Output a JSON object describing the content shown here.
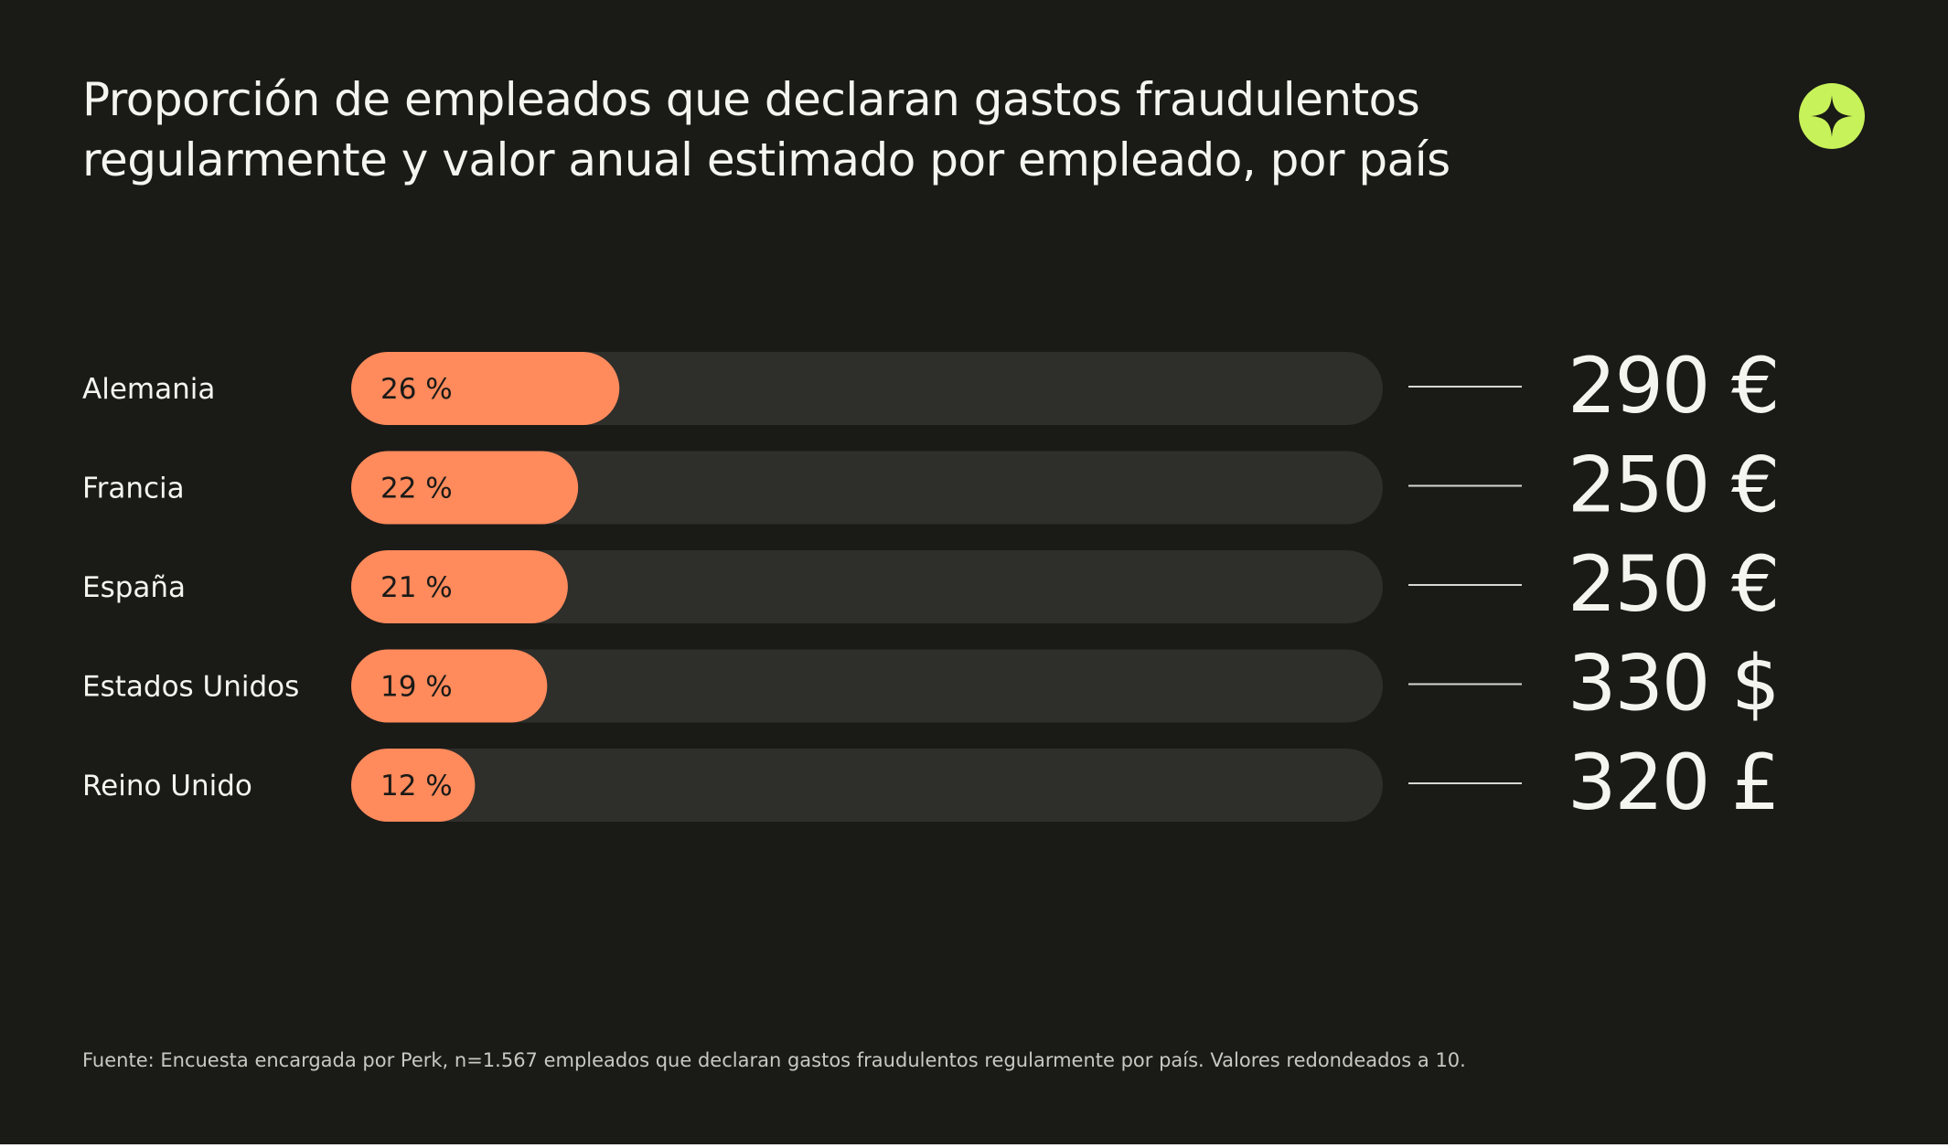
{
  "chart_data": {
    "type": "bar",
    "title": "Proporción de empleados que declaran gastos fraudulentos regularmente y valor anual estimado por empleado, por país",
    "title_lines": [
      "Proporción de empleados que declaran gastos fraudulentos",
      "regularmente y valor anual estimado por empleado, por país"
    ],
    "categories": [
      "Alemania",
      "Francia",
      "España",
      "Estados Unidos",
      "Reino Unido"
    ],
    "values": [
      26,
      22,
      21,
      19,
      12
    ],
    "value_labels": [
      "26 %",
      "22 %",
      "21 %",
      "19 %",
      "12 %"
    ],
    "annual_values": [
      "290 €",
      "250 €",
      "250 €",
      "330 $",
      "320 £"
    ],
    "ylim": [
      0,
      100
    ],
    "orientation": "horizontal",
    "grid": false,
    "legend": "none"
  },
  "footer": {
    "source": "Fuente: Encuesta encargada por Perk, n=1.567 empleados que declaran gastos fraudulentos regularmente por país. Valores redondeados a 10."
  },
  "icons": {
    "logo": "perk-logo-icon"
  },
  "colors": {
    "background": "#1a1a17",
    "track": "#2e2e2a",
    "bar": "#ff8a5c",
    "bar_label": "#1a1a17",
    "text": "#f5f5f0",
    "connector": "#d8d8d2",
    "accent": "#c8f25a"
  }
}
